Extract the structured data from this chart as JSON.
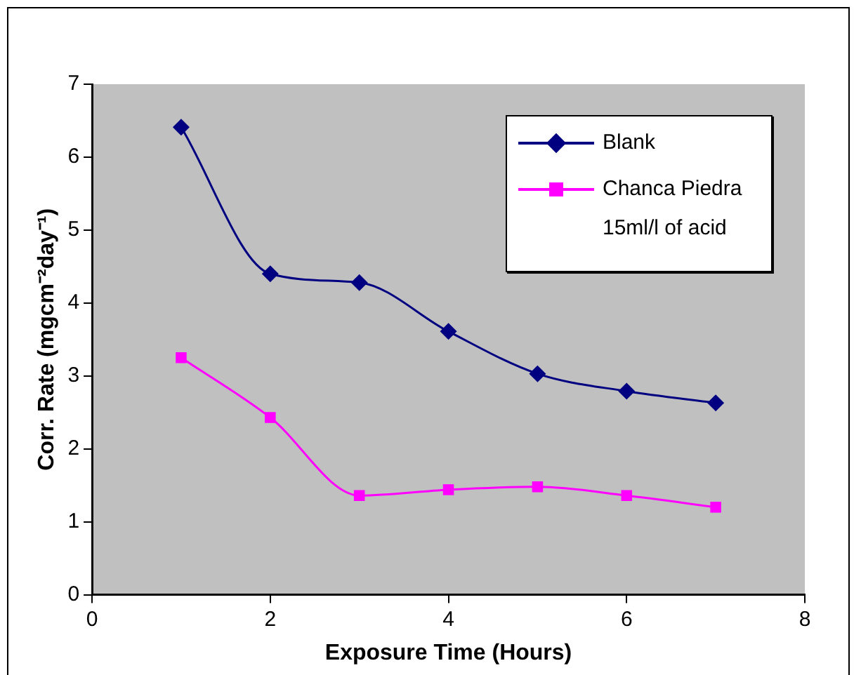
{
  "chart_data": {
    "type": "line",
    "xlabel": "Exposure Time (Hours)",
    "ylabel": "Corr. Rate (mgcm⁻²day⁻¹)",
    "x": [
      1,
      2,
      3,
      4,
      5,
      6,
      7
    ],
    "series": [
      {
        "name": "Blank",
        "color": "#000080",
        "marker": "diamond",
        "values": [
          6.41,
          4.4,
          4.28,
          3.61,
          3.03,
          2.79,
          2.63
        ]
      },
      {
        "name": "Chanca Piedra 15ml/l of acid",
        "color": "#ff00ff",
        "marker": "square",
        "values": [
          3.25,
          2.43,
          1.36,
          1.44,
          1.48,
          1.36,
          1.2
        ]
      }
    ],
    "xlim": [
      0,
      8
    ],
    "xticks": [
      0,
      2,
      4,
      6,
      8
    ],
    "ylim": [
      0,
      7
    ],
    "yticks": [
      0,
      1,
      2,
      3,
      4,
      5,
      6,
      7
    ],
    "grid": false,
    "legend": "top right",
    "line_style": "solid"
  }
}
